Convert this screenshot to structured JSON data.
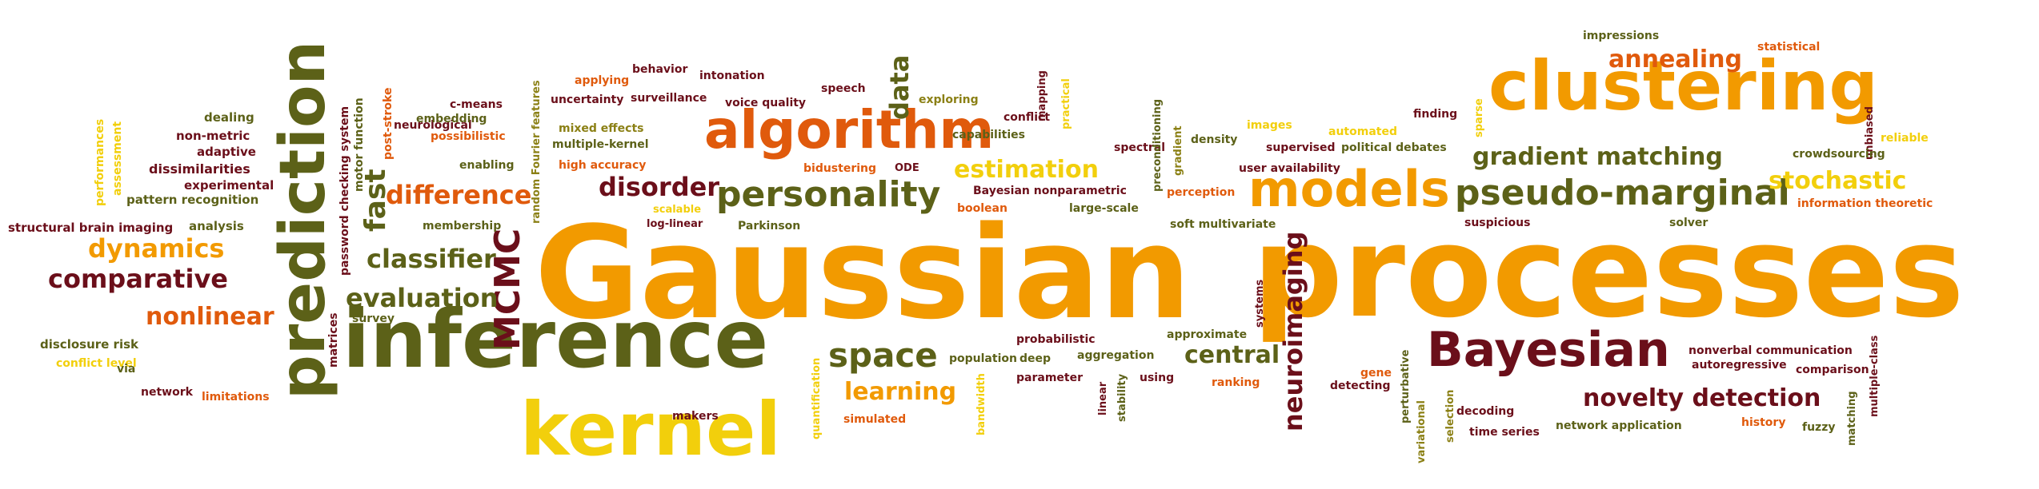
{
  "palette": {
    "orange": "#f29a00",
    "red_orange": "#e05a0c",
    "yellow": "#f2cf0c",
    "olive": "#5c6118",
    "maroon": "#6b0f1a",
    "mustard": "#8b8015"
  },
  "words": {
    "gaussian": "Gaussian",
    "processes": "processes",
    "inference": "inference",
    "prediction": "prediction",
    "kernel": "kernel",
    "clustering": "clustering",
    "algorithm": "algorithm",
    "models": "models",
    "bayesian": "Bayesian",
    "personality": "personality",
    "pseudo_marginal": "pseudo-marginal",
    "mcmc": "MCMC",
    "space": "space",
    "dynamics": "dynamics",
    "comparative": "comparative",
    "nonlinear": "nonlinear",
    "evaluation": "evaluation",
    "classifier": "classifier",
    "difference": "difference",
    "disorder": "disorder",
    "estimation": "estimation",
    "gradient_matching": "gradient matching",
    "stochastic": "stochastic",
    "annealing": "annealing",
    "novelty_detection": "novelty detection",
    "neuroimaging": "neuroimaging",
    "central": "central",
    "learning": "learning",
    "fast": "fast",
    "data": "data",
    "structural_brain_imaging": "structural brain imaging",
    "analysis": "analysis",
    "pattern_recognition": "pattern recognition",
    "dissimilarities": "dissimilarities",
    "experimental": "experimental",
    "adaptive": "adaptive",
    "non_metric": "non-metric",
    "dealing": "dealing",
    "performances": "performances",
    "assessment": "assessment",
    "disclosure_risk": "disclosure risk",
    "conflict_level": "conflict level",
    "network": "network",
    "limitations": "limitations",
    "via": "via",
    "matrices": "matrices",
    "survey": "survey",
    "password_checking_system": "password checking system",
    "motor_function": "motor function",
    "post_stroke": "post-stroke",
    "neurological": "neurological",
    "embedding": "embedding",
    "c_means": "c-means",
    "possibilistic": "possibilistic",
    "enabling": "enabling",
    "membership": "membership",
    "random_fourier_features": "random Fourier features",
    "applying": "applying",
    "behavior": "behavior",
    "intonation": "intonation",
    "uncertainty": "uncertainty",
    "surveillance": "surveillance",
    "voice_quality": "voice quality",
    "speech": "speech",
    "mixed_effects": "mixed effects",
    "multiple_kernel": "multiple-kernel",
    "high_accuracy": "high accuracy",
    "bidustering": "bidustering",
    "scalable": "scalable",
    "log_linear": "log-linear",
    "parkinson": "Parkinson",
    "exploring": "exploring",
    "conflict": "conflict",
    "mapping": "mapping",
    "practical": "practical",
    "capabilities": "capabilities",
    "ode": "ODE",
    "boolean": "boolean",
    "bayesian_nonparametric": "Bayesian nonparametric",
    "large_scale": "large-scale",
    "spectral": "spectral",
    "preconditioning": "preconditioning",
    "gradient": "gradient",
    "density": "density",
    "images": "images",
    "supervised": "supervised",
    "user_availability": "user availability",
    "political_debates": "political debates",
    "automated": "automated",
    "finding": "finding",
    "sparse": "sparse",
    "impressions": "impressions",
    "statistical": "statistical",
    "unbiased": "unbiased",
    "reliable": "reliable",
    "crowdsourcing": "crowdsourcing",
    "information_theoretic": "information theoretic",
    "suspicious": "suspicious",
    "solver": "solver",
    "perception": "perception",
    "soft_multivariate": "soft multivariate",
    "systems": "systems",
    "approximate": "approximate",
    "probabilistic": "probabilistic",
    "population": "population",
    "deep": "deep",
    "aggregation": "aggregation",
    "parameter": "parameter",
    "linear": "linear",
    "stability": "stability",
    "using": "using",
    "ranking": "ranking",
    "bandwidth": "bandwidth",
    "simulated": "simulated",
    "quantification": "quantification",
    "makers": "makers",
    "gene": "gene",
    "detecting": "detecting",
    "perturbative": "perturbative",
    "variational": "variational",
    "selection": "selection",
    "decoding": "decoding",
    "time_series": "time series",
    "network_application": "network application",
    "nonverbal_communication": "nonverbal communication",
    "autoregressive": "autoregressive",
    "comparison": "comparison",
    "history": "history",
    "fuzzy": "fuzzy",
    "matching": "matching",
    "multiple_class": "multiple-class"
  }
}
